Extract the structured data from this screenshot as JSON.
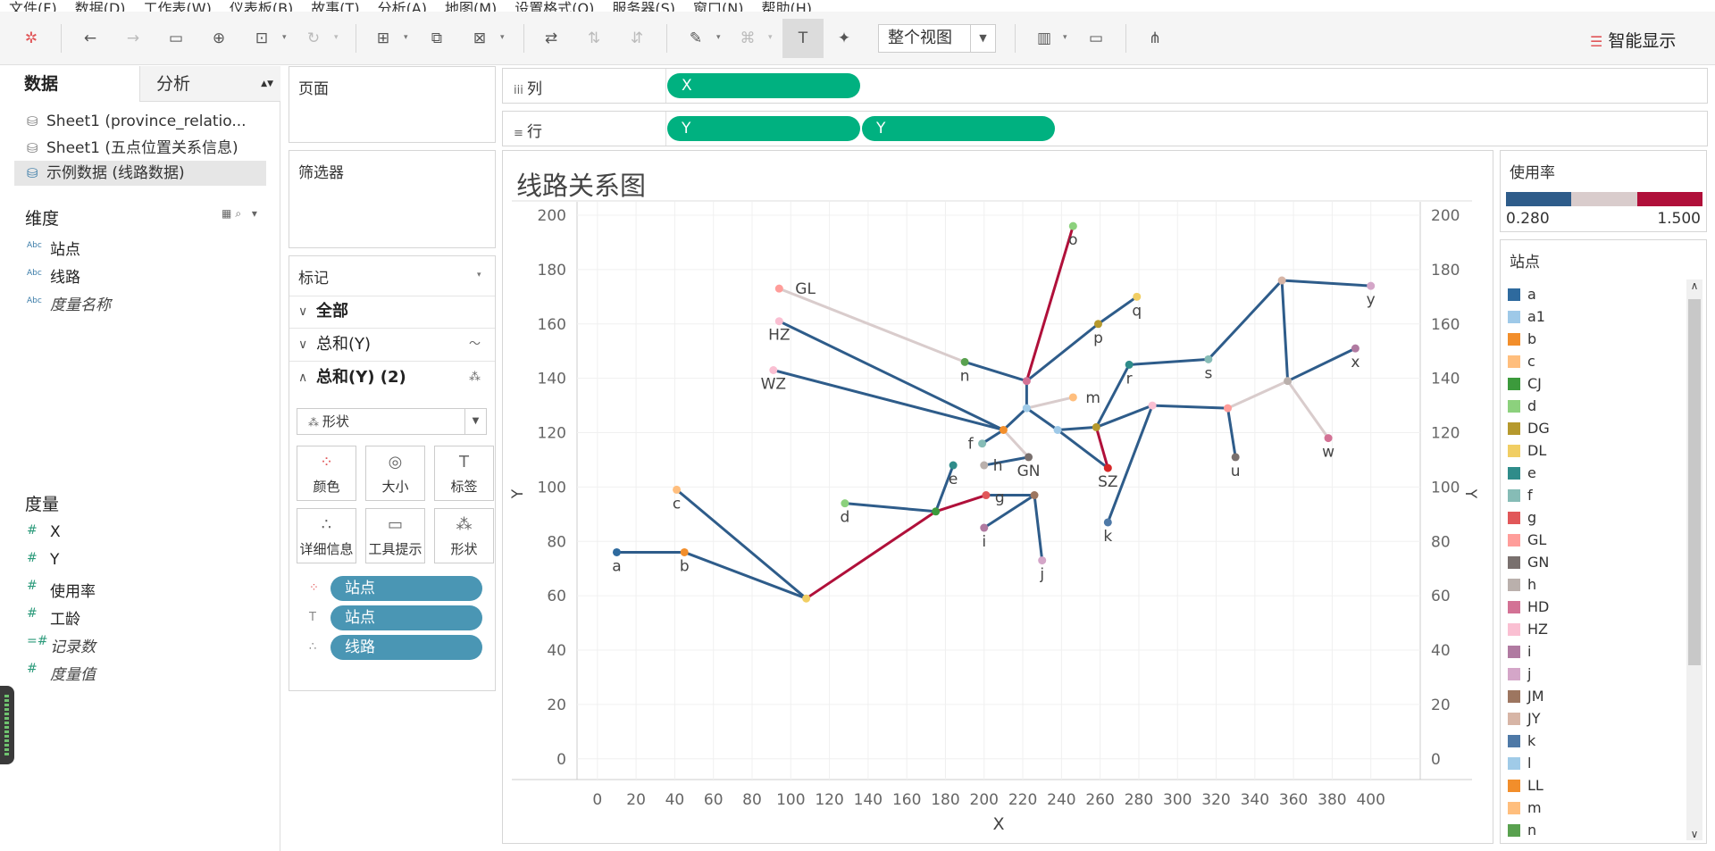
{
  "menu": [
    "文件(F)",
    "数据(D)",
    "工作表(W)",
    "仪表板(B)",
    "故事(T)",
    "分析(A)",
    "地图(M)",
    "设置格式(O)",
    "服务器(S)",
    "窗口(N)",
    "帮助(H)"
  ],
  "toolbar": {
    "view_select": "整个视图",
    "smart_show": "智能显示"
  },
  "left": {
    "tab_data": "数据",
    "tab_analysis": "分析",
    "datasources": [
      "Sheet1 (province_relatio...",
      "Sheet1 (五点位置关系信息)",
      "示例数据 (线路数据)"
    ],
    "dimensions_title": "维度",
    "dimensions": [
      "站点",
      "线路",
      "度量名称"
    ],
    "measures_title": "度量",
    "measures": [
      "X",
      "Y",
      "使用率",
      "工龄",
      "记录数",
      "度量值"
    ]
  },
  "pages_title": "页面",
  "filters_title": "筛选器",
  "marks": {
    "title": "标记",
    "row_all": "全部",
    "row_sum1": "总和(Y)",
    "row_sum2": "总和(Y) (2)",
    "shape_select": "形状",
    "buttons": [
      "颜色",
      "大小",
      "标签",
      "详细信息",
      "工具提示",
      "形状"
    ],
    "pills": [
      "站点",
      "站点",
      "线路"
    ]
  },
  "shelves": {
    "cols_label": "列",
    "rows_label": "行",
    "col_pill": "X",
    "row_pill1": "Y",
    "row_pill2": "Y"
  },
  "viz": {
    "title": "线路关系图"
  },
  "legend_rate": {
    "title": "使用率",
    "min": "0.280",
    "max": "1.500",
    "colors": [
      "#2e5c8a",
      "#d9cccc",
      "#b0103a"
    ]
  },
  "legend_station": {
    "title": "站点",
    "items": [
      {
        "name": "a",
        "color": "#2e6a9e"
      },
      {
        "name": "a1",
        "color": "#9ec9e8"
      },
      {
        "name": "b",
        "color": "#f28e2b"
      },
      {
        "name": "c",
        "color": "#ffbe7d"
      },
      {
        "name": "CJ",
        "color": "#3c9a3c"
      },
      {
        "name": "d",
        "color": "#8cd17d"
      },
      {
        "name": "DG",
        "color": "#b6992d"
      },
      {
        "name": "DL",
        "color": "#f1ce63"
      },
      {
        "name": "e",
        "color": "#2f8c8a"
      },
      {
        "name": "f",
        "color": "#86bcb6"
      },
      {
        "name": "g",
        "color": "#e15759"
      },
      {
        "name": "GL",
        "color": "#ff9d9a"
      },
      {
        "name": "GN",
        "color": "#79706e"
      },
      {
        "name": "h",
        "color": "#bab0ac"
      },
      {
        "name": "HD",
        "color": "#d37295"
      },
      {
        "name": "HZ",
        "color": "#fabfd2"
      },
      {
        "name": "i",
        "color": "#b07aa1"
      },
      {
        "name": "j",
        "color": "#d4a6c8"
      },
      {
        "name": "JM",
        "color": "#9d7660"
      },
      {
        "name": "JY",
        "color": "#d7b5a6"
      },
      {
        "name": "k",
        "color": "#4e79a7"
      },
      {
        "name": "l",
        "color": "#a0cbe8"
      },
      {
        "name": "LL",
        "color": "#f28e2b"
      },
      {
        "name": "m",
        "color": "#ffbe7d"
      },
      {
        "name": "n",
        "color": "#59a14f"
      }
    ]
  },
  "chart_data": {
    "type": "scatter",
    "xlabel": "X",
    "ylabel": "Y",
    "y2label": "Y",
    "xlim": [
      -5,
      420
    ],
    "ylim": [
      -5,
      200
    ],
    "xticks": [
      0,
      20,
      40,
      60,
      80,
      100,
      120,
      140,
      160,
      180,
      200,
      220,
      240,
      260,
      280,
      300,
      320,
      340,
      360,
      380,
      400
    ],
    "yticks": [
      0,
      20,
      40,
      60,
      80,
      100,
      120,
      140,
      160,
      180,
      200
    ],
    "y2ticks": [
      0,
      20,
      40,
      60,
      80,
      100,
      120,
      140,
      160,
      180,
      200
    ],
    "points": [
      {
        "label": "a",
        "x": 10,
        "y": 76,
        "color": "#2e6a9e",
        "lx": 0,
        "ly": -15
      },
      {
        "label": "b",
        "x": 45,
        "y": 76,
        "color": "#f28e2b",
        "lx": 0,
        "ly": -15
      },
      {
        "label": "c",
        "x": 41,
        "y": 99,
        "color": "#ffbe7d",
        "lx": 0,
        "ly": -15
      },
      {
        "label": "",
        "x": 108,
        "y": 59,
        "color": "#f1ce63",
        "lx": 0,
        "ly": 0
      },
      {
        "label": "d",
        "x": 128,
        "y": 94,
        "color": "#8cd17d",
        "lx": 0,
        "ly": -15
      },
      {
        "label": "",
        "x": 175,
        "y": 91,
        "color": "#3c9a3c",
        "lx": 0,
        "ly": 0
      },
      {
        "label": "e",
        "x": 184,
        "y": 108,
        "color": "#2f8c8a",
        "lx": 0,
        "ly": -15
      },
      {
        "label": "g",
        "x": 201,
        "y": 97,
        "color": "#e15759",
        "lx": 10,
        "ly": -2
      },
      {
        "label": "",
        "x": 226,
        "y": 97,
        "color": "#9d7660",
        "lx": 0,
        "ly": 0
      },
      {
        "label": "i",
        "x": 200,
        "y": 85,
        "color": "#b07aa1",
        "lx": 0,
        "ly": -15
      },
      {
        "label": "j",
        "x": 230,
        "y": 73,
        "color": "#d4a6c8",
        "lx": 0,
        "ly": -15
      },
      {
        "label": "h",
        "x": 200,
        "y": 108,
        "color": "#bab0ac",
        "lx": 10,
        "ly": 0
      },
      {
        "label": "GN",
        "x": 223,
        "y": 111,
        "color": "#79706e",
        "lx": 0,
        "ly": -15
      },
      {
        "label": "f",
        "x": 199,
        "y": 116,
        "color": "#86bcb6",
        "lx": -10,
        "ly": 0
      },
      {
        "label": "",
        "x": 210,
        "y": 121,
        "color": "#f28e2b",
        "lx": 0,
        "ly": 0
      },
      {
        "label": "",
        "x": 222,
        "y": 129,
        "color": "#a0cbe8",
        "lx": 0,
        "ly": 0
      },
      {
        "label": "",
        "x": 238,
        "y": 121,
        "color": "#9ec9e8",
        "lx": 0,
        "ly": 0
      },
      {
        "label": "m",
        "x": 246,
        "y": 133,
        "color": "#ffbe7d",
        "lx": 14,
        "ly": 0
      },
      {
        "label": "",
        "x": 258,
        "y": 122,
        "color": "#b6992d",
        "lx": 0,
        "ly": 0
      },
      {
        "label": "SZ",
        "x": 264,
        "y": 107,
        "color": "#d62728",
        "lx": 0,
        "ly": -15
      },
      {
        "label": "k",
        "x": 264,
        "y": 87,
        "color": "#4e79a7",
        "lx": 0,
        "ly": -15
      },
      {
        "label": "r",
        "x": 275,
        "y": 145,
        "color": "#2f8c8a",
        "lx": 0,
        "ly": -15
      },
      {
        "label": "",
        "x": 287,
        "y": 130,
        "color": "#fabfd2",
        "lx": 0,
        "ly": 0
      },
      {
        "label": "s",
        "x": 316,
        "y": 147,
        "color": "#86bcb6",
        "lx": 0,
        "ly": -15
      },
      {
        "label": "",
        "x": 326,
        "y": 129,
        "color": "#ff9d9a",
        "lx": 0,
        "ly": 0
      },
      {
        "label": "u",
        "x": 330,
        "y": 111,
        "color": "#79706e",
        "lx": 0,
        "ly": -15
      },
      {
        "label": "",
        "x": 354,
        "y": 176,
        "color": "#d7b5a6",
        "lx": 0,
        "ly": 0
      },
      {
        "label": "",
        "x": 357,
        "y": 139,
        "color": "#bab0ac",
        "lx": 0,
        "ly": 0
      },
      {
        "label": "y",
        "x": 400,
        "y": 174,
        "color": "#d4a6c8",
        "lx": 0,
        "ly": -15
      },
      {
        "label": "x",
        "x": 392,
        "y": 151,
        "color": "#b07aa1",
        "lx": 0,
        "ly": -15
      },
      {
        "label": "w",
        "x": 378,
        "y": 118,
        "color": "#d37295",
        "lx": 0,
        "ly": -15
      },
      {
        "label": "GL",
        "x": 94,
        "y": 173,
        "color": "#ff9d9a",
        "lx": 18,
        "ly": 0
      },
      {
        "label": "HZ",
        "x": 94,
        "y": 161,
        "color": "#fabfd2",
        "lx": 0,
        "ly": -15
      },
      {
        "label": "WZ",
        "x": 91,
        "y": 143,
        "color": "#fabfd2",
        "lx": 0,
        "ly": -15
      },
      {
        "label": "n",
        "x": 190,
        "y": 146,
        "color": "#59a14f",
        "lx": 0,
        "ly": -15
      },
      {
        "label": "",
        "x": 222,
        "y": 139,
        "color": "#d37295",
        "lx": 0,
        "ly": 0
      },
      {
        "label": "p",
        "x": 259,
        "y": 160,
        "color": "#b6992d",
        "lx": 0,
        "ly": -15
      },
      {
        "label": "q",
        "x": 279,
        "y": 170,
        "color": "#f1ce63",
        "lx": 0,
        "ly": -15
      },
      {
        "label": "o",
        "x": 246,
        "y": 196,
        "color": "#8cd17d",
        "lx": 0,
        "ly": -15
      }
    ],
    "segments": [
      {
        "x1": 10,
        "y1": 76,
        "x2": 45,
        "y2": 76,
        "color": "#2e5c8a"
      },
      {
        "x1": 45,
        "y1": 76,
        "x2": 108,
        "y2": 59,
        "color": "#2e5c8a"
      },
      {
        "x1": 41,
        "y1": 99,
        "x2": 108,
        "y2": 59,
        "color": "#2e5c8a"
      },
      {
        "x1": 108,
        "y1": 59,
        "x2": 175,
        "y2": 91,
        "color": "#b0103a"
      },
      {
        "x1": 128,
        "y1": 94,
        "x2": 175,
        "y2": 91,
        "color": "#2e5c8a"
      },
      {
        "x1": 175,
        "y1": 91,
        "x2": 184,
        "y2": 108,
        "color": "#2e5c8a"
      },
      {
        "x1": 175,
        "y1": 91,
        "x2": 201,
        "y2": 97,
        "color": "#b0103a"
      },
      {
        "x1": 201,
        "y1": 97,
        "x2": 226,
        "y2": 97,
        "color": "#2e5c8a"
      },
      {
        "x1": 200,
        "y1": 85,
        "x2": 226,
        "y2": 97,
        "color": "#2e5c8a"
      },
      {
        "x1": 226,
        "y1": 97,
        "x2": 230,
        "y2": 73,
        "color": "#2e5c8a"
      },
      {
        "x1": 200,
        "y1": 108,
        "x2": 223,
        "y2": 111,
        "color": "#2e5c8a"
      },
      {
        "x1": 199,
        "y1": 116,
        "x2": 210,
        "y2": 121,
        "color": "#2e5c8a"
      },
      {
        "x1": 210,
        "y1": 121,
        "x2": 223,
        "y2": 111,
        "color": "#d9cccc"
      },
      {
        "x1": 94,
        "y1": 161,
        "x2": 210,
        "y2": 121,
        "color": "#2e5c8a"
      },
      {
        "x1": 91,
        "y1": 143,
        "x2": 210,
        "y2": 121,
        "color": "#2e5c8a"
      },
      {
        "x1": 94,
        "y1": 173,
        "x2": 190,
        "y2": 146,
        "color": "#d9cccc"
      },
      {
        "x1": 190,
        "y1": 146,
        "x2": 222,
        "y2": 139,
        "color": "#2e5c8a"
      },
      {
        "x1": 210,
        "y1": 121,
        "x2": 222,
        "y2": 129,
        "color": "#2e5c8a"
      },
      {
        "x1": 222,
        "y1": 129,
        "x2": 246,
        "y2": 133,
        "color": "#d9cccc"
      },
      {
        "x1": 222,
        "y1": 129,
        "x2": 238,
        "y2": 121,
        "color": "#2e5c8a"
      },
      {
        "x1": 222,
        "y1": 129,
        "x2": 222,
        "y2": 139,
        "color": "#2e5c8a"
      },
      {
        "x1": 222,
        "y1": 139,
        "x2": 246,
        "y2": 196,
        "color": "#b0103a"
      },
      {
        "x1": 222,
        "y1": 139,
        "x2": 259,
        "y2": 160,
        "color": "#2e5c8a"
      },
      {
        "x1": 259,
        "y1": 160,
        "x2": 279,
        "y2": 170,
        "color": "#2e5c8a"
      },
      {
        "x1": 238,
        "y1": 121,
        "x2": 258,
        "y2": 122,
        "color": "#2e5c8a"
      },
      {
        "x1": 238,
        "y1": 121,
        "x2": 264,
        "y2": 107,
        "color": "#2e5c8a"
      },
      {
        "x1": 258,
        "y1": 122,
        "x2": 264,
        "y2": 107,
        "color": "#b0103a"
      },
      {
        "x1": 258,
        "y1": 122,
        "x2": 275,
        "y2": 145,
        "color": "#2e5c8a"
      },
      {
        "x1": 258,
        "y1": 122,
        "x2": 287,
        "y2": 130,
        "color": "#2e5c8a"
      },
      {
        "x1": 264,
        "y1": 87,
        "x2": 287,
        "y2": 130,
        "color": "#2e5c8a"
      },
      {
        "x1": 275,
        "y1": 145,
        "x2": 316,
        "y2": 147,
        "color": "#2e5c8a"
      },
      {
        "x1": 316,
        "y1": 147,
        "x2": 354,
        "y2": 176,
        "color": "#2e5c8a"
      },
      {
        "x1": 354,
        "y1": 176,
        "x2": 400,
        "y2": 174,
        "color": "#2e5c8a"
      },
      {
        "x1": 354,
        "y1": 176,
        "x2": 357,
        "y2": 139,
        "color": "#2e5c8a"
      },
      {
        "x1": 357,
        "y1": 139,
        "x2": 392,
        "y2": 151,
        "color": "#2e5c8a"
      },
      {
        "x1": 287,
        "y1": 130,
        "x2": 326,
        "y2": 129,
        "color": "#2e5c8a"
      },
      {
        "x1": 326,
        "y1": 129,
        "x2": 330,
        "y2": 111,
        "color": "#2e5c8a"
      },
      {
        "x1": 326,
        "y1": 129,
        "x2": 357,
        "y2": 139,
        "color": "#d9cccc"
      },
      {
        "x1": 357,
        "y1": 139,
        "x2": 378,
        "y2": 118,
        "color": "#d9cccc"
      }
    ]
  }
}
